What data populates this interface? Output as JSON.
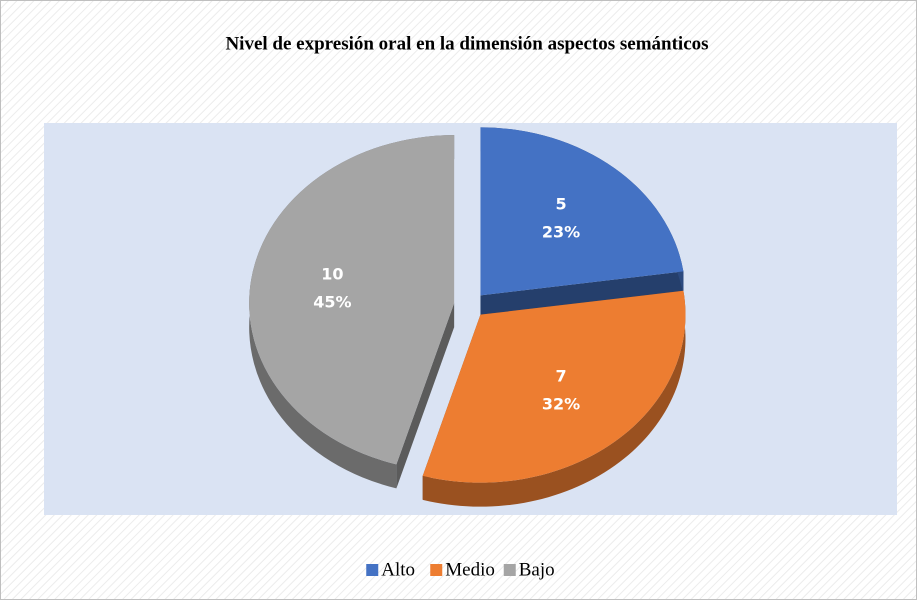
{
  "chart_data": {
    "type": "pie",
    "title": "Nivel de expresión oral en la dimensión aspectos semánticos",
    "categories": [
      "Alto",
      "Medio",
      "Bajo"
    ],
    "values": [
      5,
      7,
      10
    ],
    "percent_labels": [
      "23%",
      "32%",
      "45%"
    ],
    "colors": [
      "#4472c4",
      "#ed7d31",
      "#a5a5a5"
    ],
    "legend": "bottom"
  }
}
